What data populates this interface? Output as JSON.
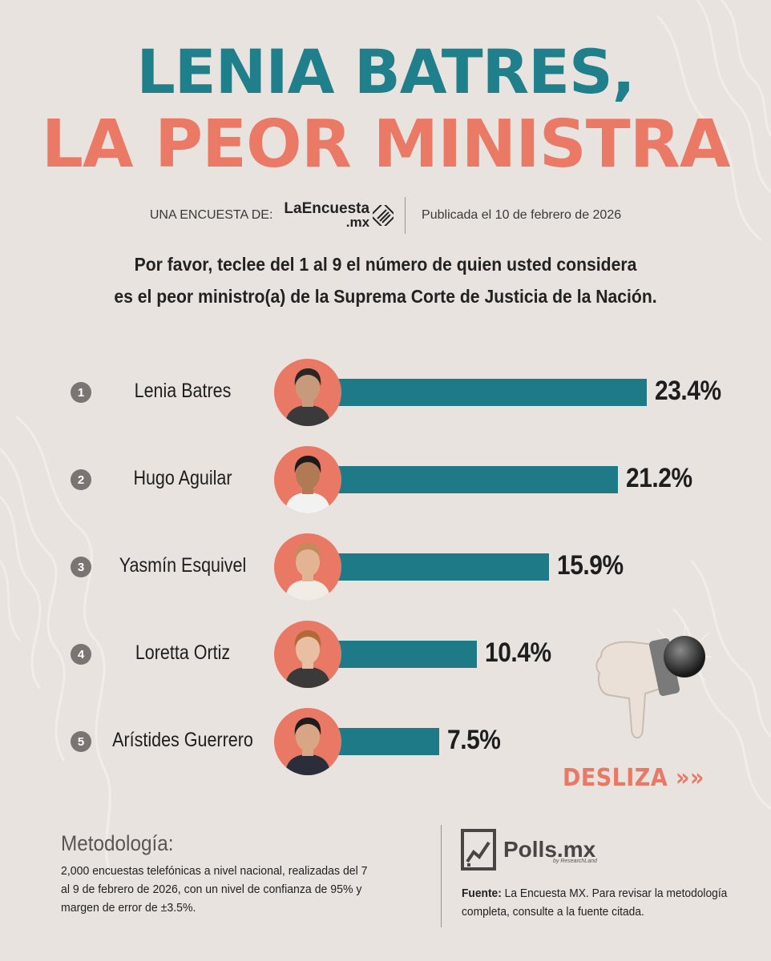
{
  "header": {
    "title_line1": "LENIA BATRES,",
    "title_line2": "LA PEOR MINISTRA",
    "byline_label": "UNA ENCUESTA DE:",
    "brand_name": "LaEncuesta",
    "brand_suffix": ".mx",
    "published": "Publicada el 10 de febrero de 2026"
  },
  "question": {
    "line1": "Por favor, teclee del 1 al 9 el número de quien usted considera",
    "line2": "es el peor ministro(a) de la Suprema Corte de Justicia de la Nación."
  },
  "chart_data": {
    "type": "bar",
    "orientation": "horizontal",
    "categories": [
      "Lenia Batres",
      "Hugo Aguilar",
      "Yasmín Esquivel",
      "Loretta Ortiz",
      "Arístides Guerrero"
    ],
    "ranks": [
      "1",
      "2",
      "3",
      "4",
      "5"
    ],
    "values": [
      23.4,
      21.2,
      15.9,
      10.4,
      7.5
    ],
    "value_labels": [
      "23.4%",
      "21.2%",
      "15.9%",
      "10.4%",
      "7.5%"
    ],
    "unit": "%",
    "bar_color": "#1e7a86",
    "avatar_color": "#e97965",
    "xlim": [
      0,
      23.4
    ]
  },
  "cta": {
    "label": "DESLIZA",
    "arrows": "»»"
  },
  "methodology": {
    "title": "Metodología:",
    "text": "2,000 encuestas telefónicas a nivel nacional, realizadas del 7 al 9 de febrero de 2026, con un nivel de confianza de 95% y margen de error de ±3.5%."
  },
  "credit": {
    "logo_name": "Polls.mx",
    "logo_sub": "by ResearchLand",
    "source_label": "Fuente:",
    "source_text": "La Encuesta MX. Para revisar la metodología completa, consulte a la fuente citada."
  },
  "colors": {
    "teal": "#1f7f8a",
    "coral": "#ea7a66",
    "background": "#e8e3df"
  },
  "icons": [
    "thumbs-down-icon",
    "laencuesta-logo-icon",
    "polls-chart-icon",
    "double-chevron-right-icon"
  ]
}
